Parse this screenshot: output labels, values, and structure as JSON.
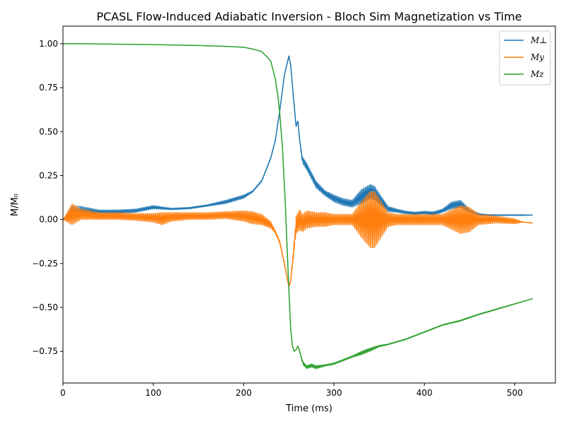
{
  "chart_data": {
    "type": "line",
    "title": "PCASL Flow-Induced Adiabatic Inversion - Bloch Sim Magnetization vs Time",
    "xlabel": "Time (ms)",
    "ylabel": "M/M₀",
    "xlim": [
      0,
      545
    ],
    "ylim": [
      -0.93,
      1.1
    ],
    "xticks": [
      0,
      100,
      200,
      300,
      400,
      500
    ],
    "xtick_labels": [
      "0",
      "100",
      "200",
      "300",
      "400",
      "500"
    ],
    "yticks": [
      -0.75,
      -0.5,
      -0.25,
      0.0,
      0.25,
      0.5,
      0.75,
      1.0
    ],
    "ytick_labels": [
      "−0.75",
      "−0.50",
      "−0.25",
      "0.00",
      "0.25",
      "0.50",
      "0.75",
      "1.00"
    ],
    "grid": false,
    "legend_position": "top-right",
    "series": [
      {
        "name": "M⊥",
        "color": "#1f77b4",
        "x": [
          0,
          10,
          20,
          40,
          60,
          80,
          100,
          120,
          140,
          160,
          180,
          200,
          210,
          220,
          230,
          235,
          240,
          245,
          250,
          252,
          255,
          258,
          260,
          262,
          265,
          270,
          280,
          290,
          300,
          310,
          320,
          330,
          340,
          345,
          350,
          360,
          370,
          380,
          390,
          400,
          410,
          420,
          430,
          440,
          450,
          460,
          470,
          480,
          490,
          500,
          510,
          520
        ],
        "y": [
          0.0,
          0.04,
          0.05,
          0.045,
          0.045,
          0.05,
          0.07,
          0.06,
          0.065,
          0.08,
          0.1,
          0.13,
          0.16,
          0.22,
          0.35,
          0.45,
          0.62,
          0.82,
          0.93,
          0.88,
          0.7,
          0.53,
          0.56,
          0.45,
          0.34,
          0.3,
          0.2,
          0.15,
          0.12,
          0.1,
          0.09,
          0.13,
          0.16,
          0.15,
          0.12,
          0.06,
          0.05,
          0.04,
          0.035,
          0.04,
          0.035,
          0.05,
          0.08,
          0.09,
          0.05,
          0.03,
          0.025,
          0.025,
          0.025,
          0.025,
          0.025,
          0.025
        ],
        "band": [
          0,
          0.04,
          0.025,
          0.01,
          0.01,
          0.01,
          0.01,
          0.005,
          0.005,
          0.005,
          0.01,
          0.01,
          0.005,
          0.005,
          0.005,
          0.005,
          0.005,
          0.005,
          0.005,
          0.005,
          0.005,
          0.005,
          0.005,
          0.01,
          0.02,
          0.02,
          0.02,
          0.015,
          0.02,
          0.02,
          0.02,
          0.04,
          0.04,
          0.04,
          0.03,
          0.015,
          0.01,
          0.008,
          0.008,
          0.008,
          0.01,
          0.01,
          0.02,
          0.02,
          0.01,
          0.006,
          0.004,
          0.003,
          0.003,
          0.003,
          0.003,
          0.0
        ]
      },
      {
        "name": "My",
        "color": "#ff7f0e",
        "x": [
          0,
          10,
          20,
          40,
          60,
          80,
          100,
          110,
          120,
          140,
          160,
          180,
          200,
          210,
          220,
          230,
          235,
          240,
          245,
          250,
          252,
          255,
          258,
          262,
          265,
          270,
          280,
          290,
          300,
          310,
          320,
          330,
          340,
          345,
          350,
          360,
          370,
          380,
          390,
          400,
          420,
          440,
          450,
          460,
          480,
          500,
          510,
          520
        ],
        "y": [
          0.0,
          0.03,
          0.03,
          0.02,
          0.02,
          0.015,
          0.01,
          0.005,
          0.015,
          0.02,
          0.02,
          0.025,
          0.02,
          0.01,
          0.0,
          -0.03,
          -0.07,
          -0.13,
          -0.25,
          -0.38,
          -0.35,
          -0.2,
          -0.03,
          0.0,
          -0.02,
          0.0,
          0.0,
          0.0,
          0.0,
          0.0,
          0.0,
          0.0,
          0.0,
          0.0,
          0.0,
          0.0,
          0.0,
          0.0,
          0.0,
          0.0,
          0.0,
          0.0,
          0.0,
          0.0,
          0.0,
          -0.01,
          -0.015,
          -0.02
        ],
        "band": [
          0,
          0.06,
          0.03,
          0.02,
          0.02,
          0.02,
          0.025,
          0.035,
          0.025,
          0.02,
          0.02,
          0.02,
          0.03,
          0.035,
          0.03,
          0.02,
          0.01,
          0.01,
          0.01,
          0.005,
          0.01,
          0.03,
          0.05,
          0.06,
          0.05,
          0.05,
          0.04,
          0.04,
          0.03,
          0.03,
          0.03,
          0.1,
          0.16,
          0.16,
          0.12,
          0.04,
          0.03,
          0.03,
          0.03,
          0.03,
          0.03,
          0.08,
          0.07,
          0.03,
          0.02,
          0.015,
          0.0,
          0.0
        ]
      },
      {
        "name": "Mz",
        "color": "#2ca02c",
        "x": [
          0,
          20,
          50,
          100,
          150,
          180,
          200,
          210,
          220,
          225,
          230,
          235,
          238,
          240,
          243,
          246,
          248,
          250,
          252,
          254,
          256,
          258,
          260,
          262,
          264,
          266,
          270,
          275,
          280,
          290,
          300,
          310,
          320,
          330,
          340,
          350,
          360,
          380,
          400,
          420,
          440,
          460,
          480,
          500,
          520
        ],
        "y": [
          1.0,
          1.0,
          0.998,
          0.995,
          0.99,
          0.985,
          0.98,
          0.97,
          0.955,
          0.93,
          0.9,
          0.8,
          0.7,
          0.6,
          0.4,
          0.1,
          -0.15,
          -0.4,
          -0.62,
          -0.72,
          -0.75,
          -0.74,
          -0.72,
          -0.75,
          -0.79,
          -0.82,
          -0.84,
          -0.83,
          -0.84,
          -0.83,
          -0.82,
          -0.8,
          -0.78,
          -0.76,
          -0.74,
          -0.72,
          -0.71,
          -0.68,
          -0.64,
          -0.6,
          -0.575,
          -0.54,
          -0.51,
          -0.48,
          -0.45
        ],
        "band": [
          0,
          0,
          0,
          0,
          0,
          0,
          0,
          0,
          0,
          0,
          0,
          0,
          0,
          0,
          0,
          0,
          0,
          0,
          0,
          0,
          0,
          0,
          0,
          0.005,
          0.01,
          0.01,
          0.01,
          0.01,
          0.01,
          0.005,
          0.005,
          0.005,
          0.005,
          0.01,
          0.01,
          0.005,
          0.003,
          0.003,
          0.003,
          0.003,
          0.004,
          0.003,
          0.003,
          0.002,
          0.0
        ]
      }
    ],
    "legend": [
      {
        "label": "M⊥",
        "color": "#1f77b4"
      },
      {
        "label": "My",
        "color": "#ff7f0e"
      },
      {
        "label": "Mz",
        "color": "#2ca02c"
      }
    ]
  }
}
